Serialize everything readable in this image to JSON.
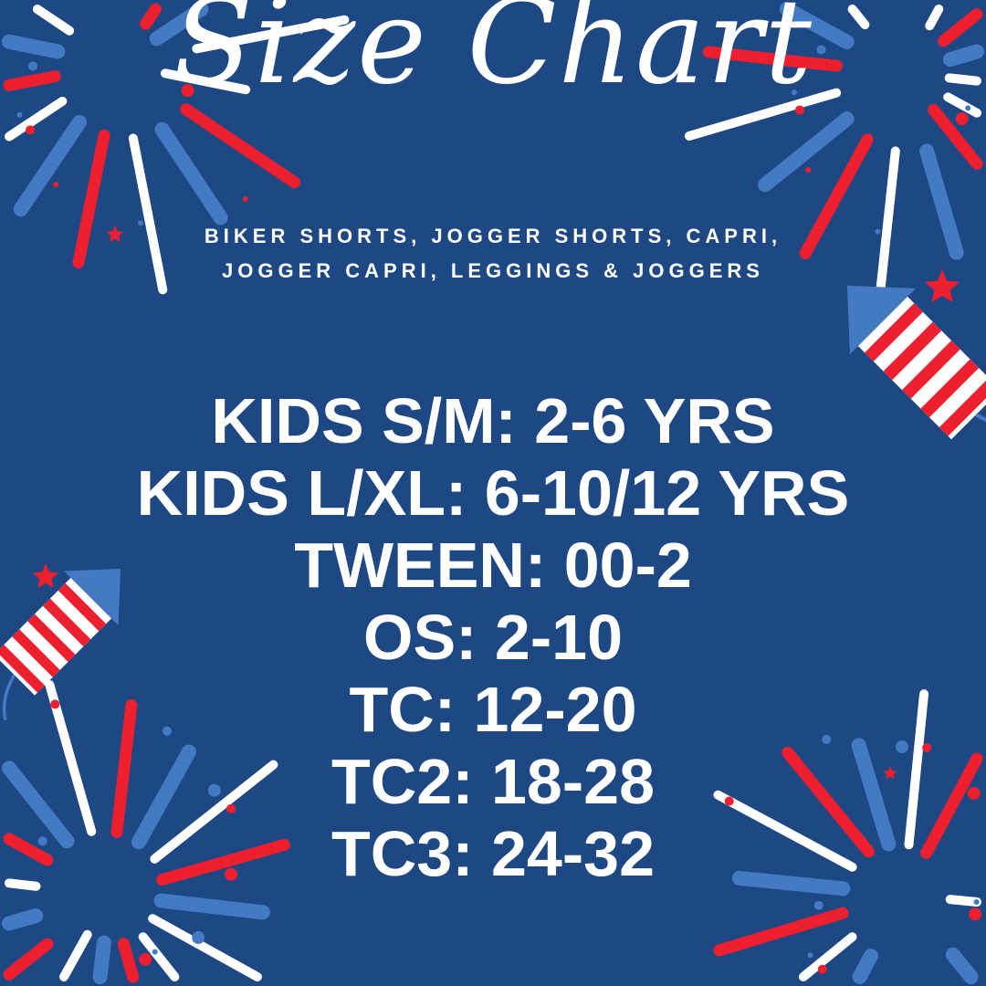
{
  "title": "Size Chart",
  "subtitle": [
    "BIKER SHORTS, JOGGER SHORTS, CAPRI,",
    "JOGGER CAPRI, LEGGINGS & JOGGERS"
  ],
  "sizes": [
    "KIDS S/M: 2-6 YRS",
    "KIDS L/XL: 6-10/12 YRS",
    "TWEEN: 00-2",
    "OS: 2-10",
    "TC: 12-20",
    "TC2: 18-28",
    "TC3: 24-32"
  ],
  "colors": {
    "background": "#1d4883",
    "red": "#ee1f2f",
    "light_blue": "#4479c4",
    "white": "#ffffff"
  },
  "decorations": [
    "firework-icon",
    "rocket-icon",
    "star-icon"
  ]
}
